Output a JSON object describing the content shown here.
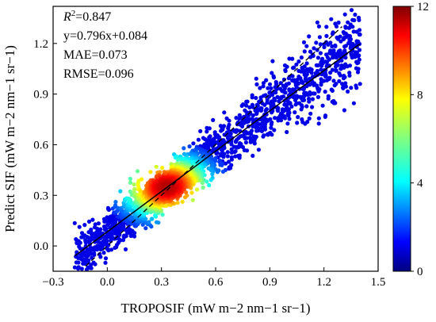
{
  "chart_data": {
    "type": "scatter",
    "subtype": "density-scatter",
    "xlabel": "TROPOSIF (mW m−2 nm−1 sr−1)",
    "ylabel": "Predict SIF (mW m−2 nm−1 sr−1)",
    "xlim": [
      -0.3,
      1.5
    ],
    "ylim": [
      -0.15,
      1.42
    ],
    "x_ticks": [
      "−0.3",
      "0.0",
      "0.3",
      "0.6",
      "0.9",
      "1.2",
      "1.5"
    ],
    "y_ticks": [
      "0.0",
      "0.3",
      "0.6",
      "0.9",
      "1.2"
    ],
    "grid": false,
    "annotations": [
      "R2=0.847",
      "y=0.796x+0.084",
      "MAE=0.073",
      "RMSE=0.096"
    ],
    "annotation_parts": {
      "r2_symbol": "R",
      "r2_superscript": "2",
      "r2_value": "=0.847",
      "equation": "y=0.796x+0.084",
      "mae": "MAE=0.073",
      "rmse": "RMSE=0.096"
    },
    "fit_line": {
      "slope": 0.796,
      "intercept": 0.084,
      "x_range": [
        -0.18,
        1.4
      ],
      "style": "solid",
      "color": "#000000"
    },
    "one_to_one_line": {
      "slope": 1,
      "intercept": 0,
      "x_range": [
        -0.12,
        1.3
      ],
      "style": "dashed",
      "color": "#000000"
    },
    "density_colorbar": {
      "min": 0,
      "max": 12,
      "ticks": [
        "0",
        "4",
        "8",
        "12"
      ],
      "colormap": "jet"
    },
    "point_cloud": {
      "x_range": [
        -0.18,
        1.4
      ],
      "density_peak": [
        0.33,
        0.35
      ],
      "point_color_low": "#0a1f9e",
      "point_color_high": "#e01a1a"
    }
  }
}
